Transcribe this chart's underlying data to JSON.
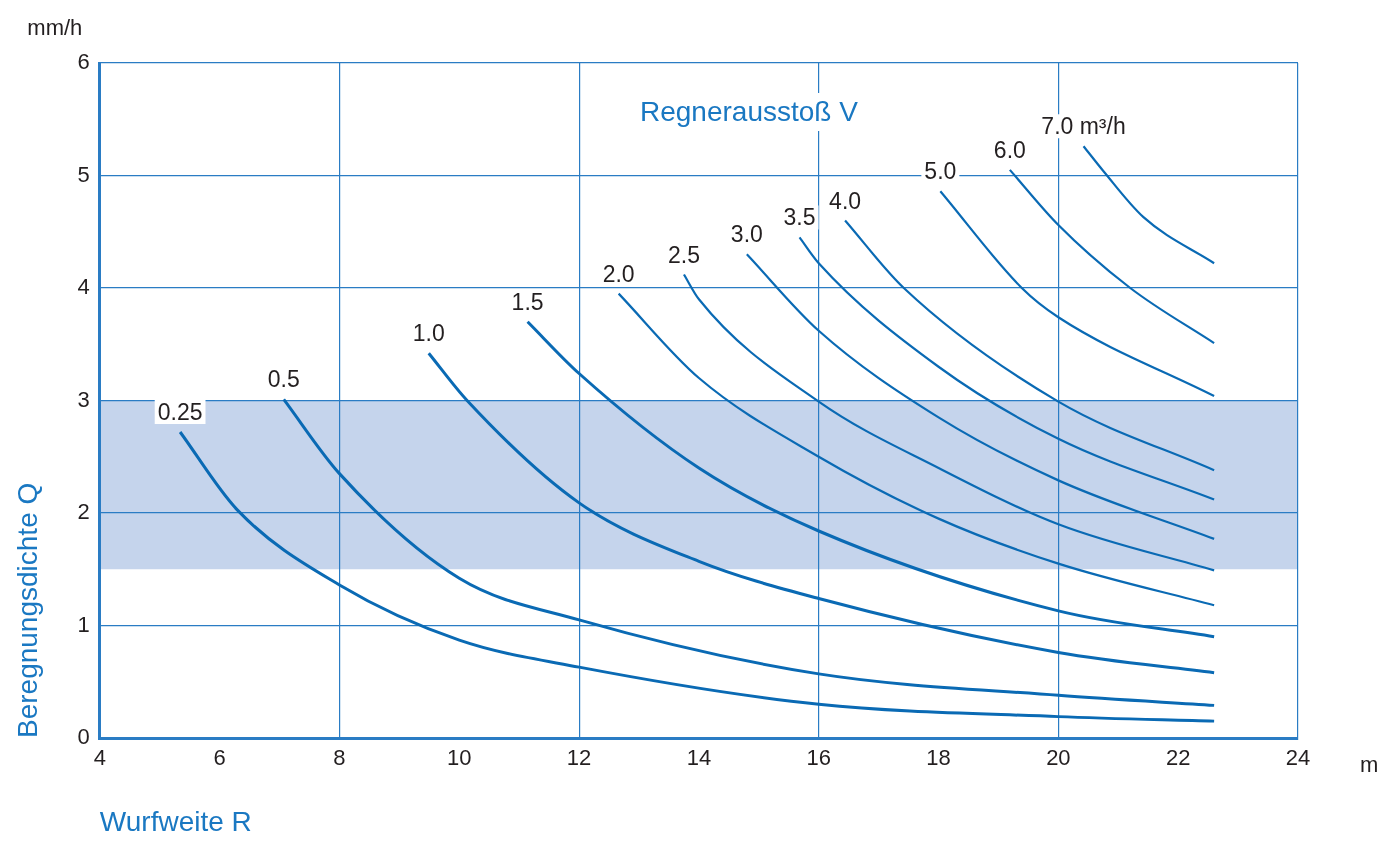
{
  "chart_data": {
    "type": "line",
    "title": "Regnerausstoß V",
    "xlabel": "Wurfweite R",
    "ylabel": "Beregnungsdichte Q",
    "annotations": [
      "mm/h",
      "m"
    ],
    "xlim": [
      4,
      24
    ],
    "xticks": [
      4,
      6,
      8,
      10,
      12,
      14,
      16,
      18,
      20,
      22,
      24
    ],
    "ylim": [
      0,
      6
    ],
    "yticks": [
      0,
      1,
      2,
      3,
      4,
      5,
      6
    ],
    "grid": true,
    "marker": "none",
    "line_style": "solid",
    "bands": [
      {
        "axis": "y",
        "from": 1.5,
        "to": 3,
        "color": "#c5d4ec"
      }
    ],
    "series": [
      {
        "name": "0.25",
        "color": "#0a6ab4",
        "x": [
          5.34,
          6.29,
          8,
          10,
          12,
          16,
          20,
          22.6
        ],
        "values": [
          2.72,
          2.03,
          1.36,
          0.87,
          0.63,
          0.3,
          0.19,
          0.15
        ]
      },
      {
        "name": "0.5",
        "color": "#0a6ab4",
        "x": [
          7.07,
          8,
          10,
          12,
          16,
          20,
          22.6
        ],
        "values": [
          3.01,
          2.35,
          1.42,
          1.05,
          0.57,
          0.38,
          0.29
        ]
      },
      {
        "name": "1.0",
        "color": "#0a6ab4",
        "x": [
          9.49,
          10.13,
          12,
          14,
          16,
          20,
          22.6
        ],
        "values": [
          3.42,
          3.0,
          2.09,
          1.57,
          1.24,
          0.76,
          0.58
        ]
      },
      {
        "name": "1.5",
        "color": "#0a6ab4",
        "x": [
          11.14,
          12,
          14,
          16,
          20,
          22.6
        ],
        "values": [
          3.7,
          3.24,
          2.4,
          1.84,
          1.13,
          0.9
        ]
      },
      {
        "name": "2.0",
        "color": "#0a6ab4",
        "x": [
          12.66,
          14,
          16,
          18,
          20,
          22.6
        ],
        "values": [
          3.95,
          3.2,
          2.5,
          1.95,
          1.55,
          1.18
        ]
      },
      {
        "name": "2.5",
        "color": "#0a6ab4",
        "x": [
          13.75,
          14,
          16,
          18,
          20,
          22.6
        ],
        "values": [
          4.12,
          3.9,
          2.99,
          2.4,
          1.9,
          1.49
        ]
      },
      {
        "name": "3.0",
        "color": "#0a6ab4",
        "x": [
          14.8,
          16,
          18,
          20,
          22.6
        ],
        "values": [
          4.3,
          3.62,
          2.85,
          2.29,
          1.77
        ]
      },
      {
        "name": "3.5",
        "color": "#0a6ab4",
        "x": [
          15.68,
          16,
          18,
          20,
          22.6
        ],
        "values": [
          4.45,
          4.22,
          3.3,
          2.66,
          2.12
        ]
      },
      {
        "name": "4.0",
        "color": "#0a6ab4",
        "x": [
          16.44,
          17.42,
          20,
          22.6
        ],
        "values": [
          4.6,
          4.0,
          2.99,
          2.38
        ]
      },
      {
        "name": "5.0",
        "color": "#0a6ab4",
        "x": [
          18.03,
          19.39,
          20,
          22.6
        ],
        "values": [
          4.86,
          4.0,
          3.74,
          3.04
        ]
      },
      {
        "name": "6.0",
        "color": "#0a6ab4",
        "x": [
          19.19,
          20,
          21.2,
          22.6
        ],
        "values": [
          5.05,
          4.56,
          4.0,
          3.51
        ]
      },
      {
        "name": "7.0 m³/h",
        "color": "#0a6ab4",
        "x": [
          20.42,
          20.75,
          21.42,
          22.6
        ],
        "values": [
          5.26,
          5.04,
          4.63,
          4.22
        ]
      }
    ]
  }
}
